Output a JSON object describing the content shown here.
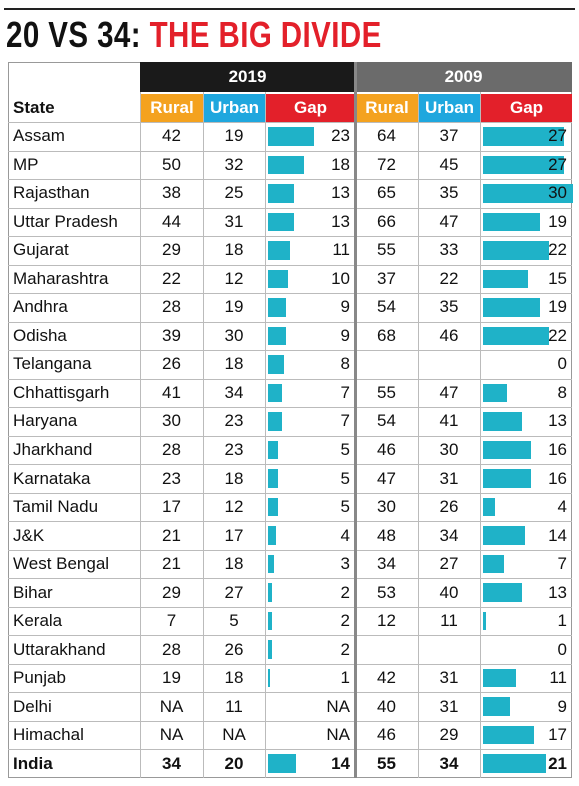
{
  "title": {
    "lead": "20 VS 34:",
    "headline": "THE BIG DIVIDE"
  },
  "groups": [
    "2019",
    "2009"
  ],
  "columns": [
    "State",
    "Rural",
    "Urban",
    "Gap",
    "Rural",
    "Urban",
    "Gap"
  ],
  "rows": [
    [
      "Assam",
      42,
      19,
      23,
      64,
      37,
      27
    ],
    [
      "MP",
      50,
      32,
      18,
      72,
      45,
      27
    ],
    [
      "Rajasthan",
      38,
      25,
      13,
      65,
      35,
      30
    ],
    [
      "Uttar Pradesh",
      44,
      31,
      13,
      66,
      47,
      19
    ],
    [
      "Gujarat",
      29,
      18,
      11,
      55,
      33,
      22
    ],
    [
      "Maharashtra",
      22,
      12,
      10,
      37,
      22,
      15
    ],
    [
      "Andhra",
      28,
      19,
      9,
      54,
      35,
      19
    ],
    [
      "Odisha",
      39,
      30,
      9,
      68,
      46,
      22
    ],
    [
      "Telangana",
      26,
      18,
      8,
      null,
      null,
      0
    ],
    [
      "Chhattisgarh",
      41,
      34,
      7,
      55,
      47,
      8
    ],
    [
      "Haryana",
      30,
      23,
      7,
      54,
      41,
      13
    ],
    [
      "Jharkhand",
      28,
      23,
      5,
      46,
      30,
      16
    ],
    [
      "Karnataka",
      23,
      18,
      5,
      47,
      31,
      16
    ],
    [
      "Tamil Nadu",
      17,
      12,
      5,
      30,
      26,
      4
    ],
    [
      "J&K",
      21,
      17,
      4,
      48,
      34,
      14
    ],
    [
      "West Bengal",
      21,
      18,
      3,
      34,
      27,
      7
    ],
    [
      "Bihar",
      29,
      27,
      2,
      53,
      40,
      13
    ],
    [
      "Kerala",
      7,
      5,
      2,
      12,
      11,
      1
    ],
    [
      "Uttarakhand",
      28,
      26,
      2,
      null,
      null,
      0
    ],
    [
      "Punjab",
      19,
      18,
      1,
      42,
      31,
      11
    ],
    [
      "Delhi",
      "NA",
      11,
      "NA",
      40,
      31,
      9
    ],
    [
      "Himachal",
      "NA",
      "NA",
      "NA",
      46,
      29,
      17
    ],
    [
      "India",
      34,
      20,
      14,
      55,
      34,
      21
    ]
  ]
}
